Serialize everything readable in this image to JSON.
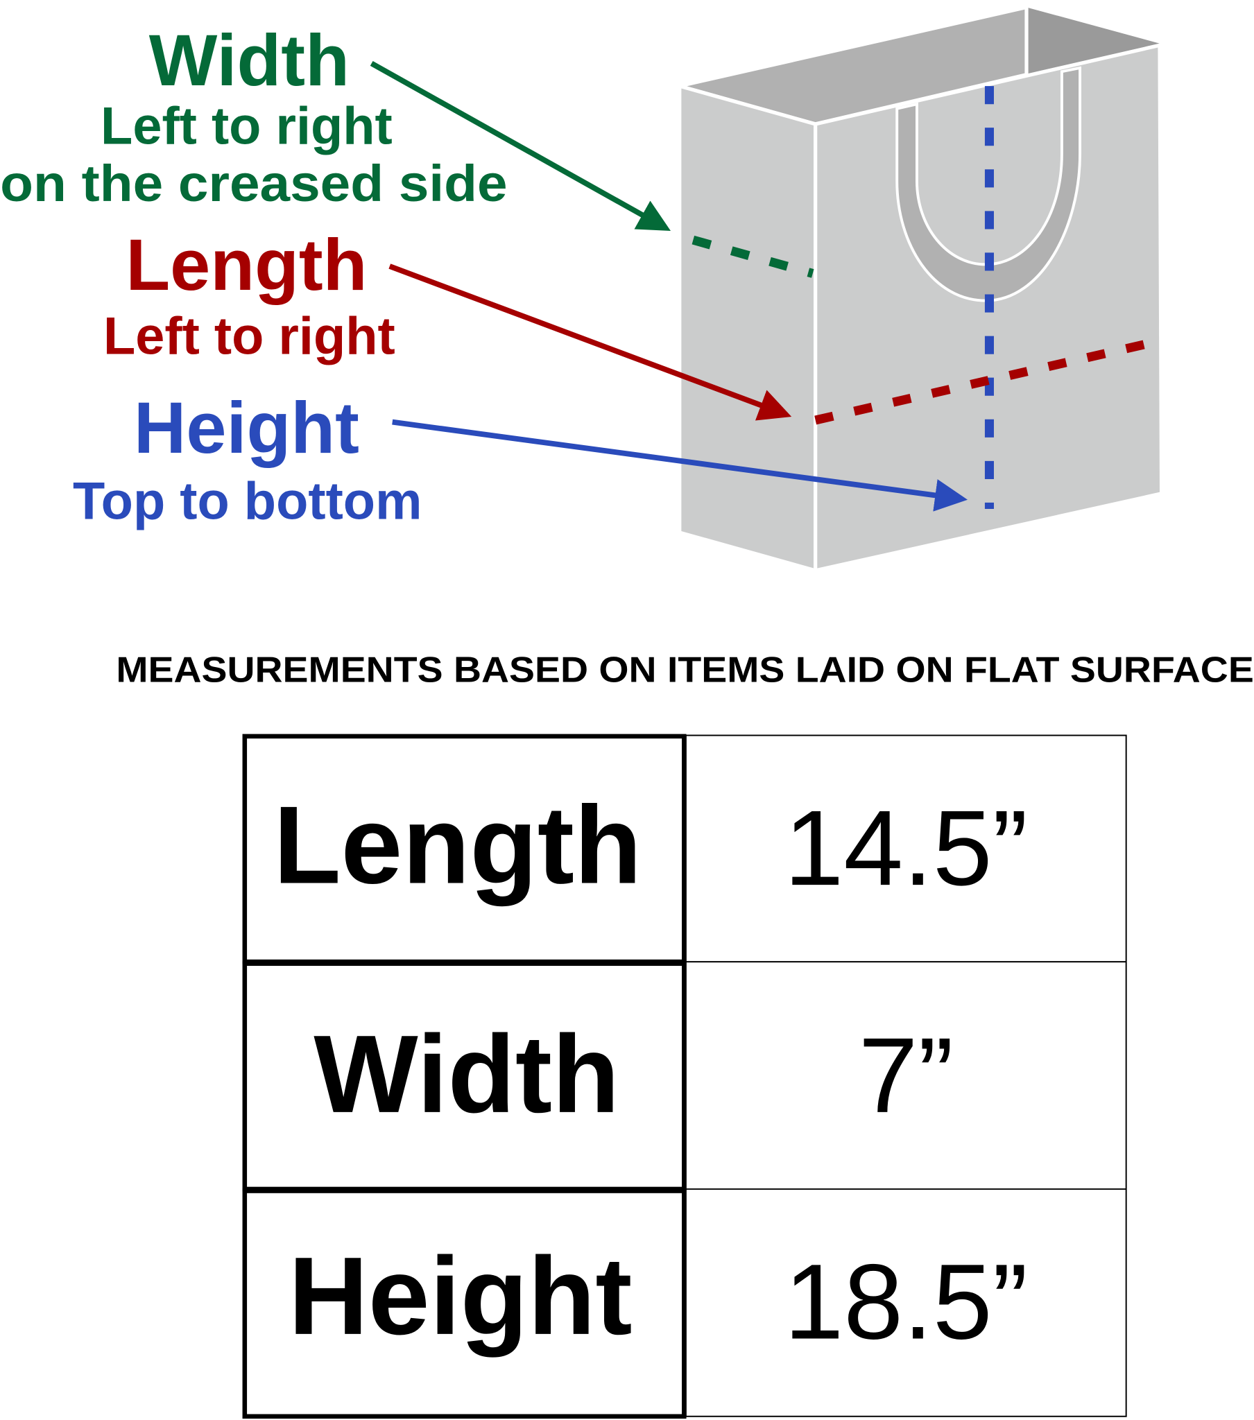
{
  "labels": {
    "width": {
      "title": "Width",
      "line1": "Left to right",
      "line2": "on the creased side"
    },
    "length": {
      "title": "Length",
      "line1": "Left to right"
    },
    "height": {
      "title": "Height",
      "line1": "Top to bottom"
    }
  },
  "colors": {
    "width": "#046a38",
    "length": "#a50000",
    "height": "#2a4bbb",
    "bag_face": "#cbcccc",
    "bag_top": "#b1b1b1",
    "bag_inner": "#9a9a9a"
  },
  "note": "MEASUREMENTS BASED ON ITEMS LAID ON FLAT SURFACE",
  "table": {
    "rows": [
      {
        "label": "Length",
        "value": "14.5”"
      },
      {
        "label": "Width",
        "value": "7”"
      },
      {
        "label": "Height",
        "value": "18.5”"
      }
    ]
  }
}
